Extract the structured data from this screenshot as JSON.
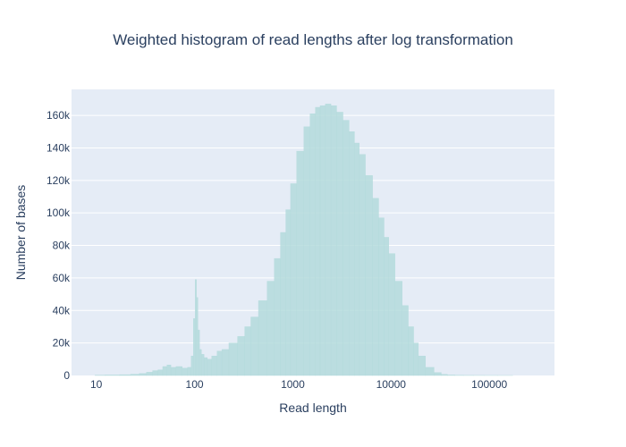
{
  "chart_data": {
    "type": "bar",
    "title": "Weighted histogram of read lengths after log transformation",
    "xlabel": "Read length",
    "ylabel": "Number of bases",
    "x_scale": "log",
    "xlim": [
      5.6,
      460000
    ],
    "ylim": [
      0,
      176000
    ],
    "grid": true,
    "x_ticks": [
      {
        "value": 10,
        "label": "10"
      },
      {
        "value": 100,
        "label": "100"
      },
      {
        "value": 1000,
        "label": "1000"
      },
      {
        "value": 10000,
        "label": "10000"
      },
      {
        "value": 100000,
        "label": "100000"
      }
    ],
    "y_ticks": [
      {
        "value": 0,
        "label": "0"
      },
      {
        "value": 20000,
        "label": "20k"
      },
      {
        "value": 40000,
        "label": "40k"
      },
      {
        "value": 60000,
        "label": "60k"
      },
      {
        "value": 80000,
        "label": "80k"
      },
      {
        "value": 100000,
        "label": "100k"
      },
      {
        "value": 120000,
        "label": "120k"
      },
      {
        "value": 140000,
        "label": "140k"
      },
      {
        "value": 160000,
        "label": "160k"
      }
    ],
    "bar_color": "#b4dbdc",
    "x": [
      10,
      15,
      20,
      25,
      30,
      35,
      40,
      45,
      50,
      55,
      60,
      70,
      80,
      90,
      95,
      100,
      103,
      106,
      110,
      115,
      120,
      130,
      140,
      160,
      180,
      200,
      250,
      300,
      350,
      400,
      500,
      600,
      700,
      800,
      900,
      1000,
      1200,
      1400,
      1600,
      1800,
      2000,
      2300,
      2600,
      3000,
      3500,
      4000,
      4500,
      5000,
      6000,
      7000,
      8000,
      9000,
      10000,
      12000,
      14000,
      16000,
      18000,
      20000,
      25000,
      30000,
      35000,
      40000,
      50000,
      60000,
      80000,
      100000,
      150000,
      200000
    ],
    "values": [
      200,
      300,
      500,
      800,
      1200,
      2000,
      3000,
      3500,
      5500,
      6500,
      5000,
      5500,
      4500,
      5000,
      12000,
      35000,
      59000,
      48000,
      28000,
      16000,
      13000,
      11000,
      10000,
      12000,
      15000,
      16000,
      20000,
      24000,
      30000,
      36000,
      46000,
      58000,
      72000,
      88000,
      102000,
      118000,
      138000,
      153000,
      161000,
      165000,
      166000,
      167000,
      166000,
      162000,
      157000,
      150000,
      143000,
      136000,
      123000,
      109000,
      97000,
      85000,
      75000,
      58000,
      43000,
      30000,
      20000,
      12000,
      5000,
      1800,
      700,
      300,
      150,
      80,
      40,
      20,
      10,
      0
    ]
  }
}
